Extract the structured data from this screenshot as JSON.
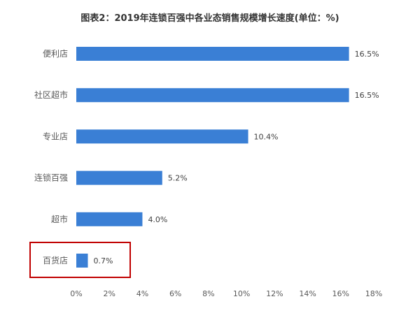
{
  "chart_data": {
    "type": "bar",
    "orientation": "horizontal",
    "title": "图表2：2019年连锁百强中各业态销售规模增长速度(单位：%)",
    "categories": [
      "便利店",
      "社区超市",
      "专业店",
      "连锁百强",
      "超市",
      "百货店"
    ],
    "values": [
      16.5,
      16.5,
      10.4,
      5.2,
      4.0,
      0.7
    ],
    "value_labels": [
      "16.5%",
      "16.5%",
      "10.4%",
      "5.2%",
      "4.0%",
      "0.7%"
    ],
    "xlim": [
      0,
      18
    ],
    "xticks": [
      "0%",
      "2%",
      "4%",
      "6%",
      "8%",
      "10%",
      "12%",
      "14%",
      "16%",
      "18%"
    ],
    "xlabel": "",
    "ylabel": "",
    "grid": false,
    "bar_color": "#3a7fd5",
    "highlight": {
      "category": "百货店",
      "color": "#c00000"
    }
  }
}
